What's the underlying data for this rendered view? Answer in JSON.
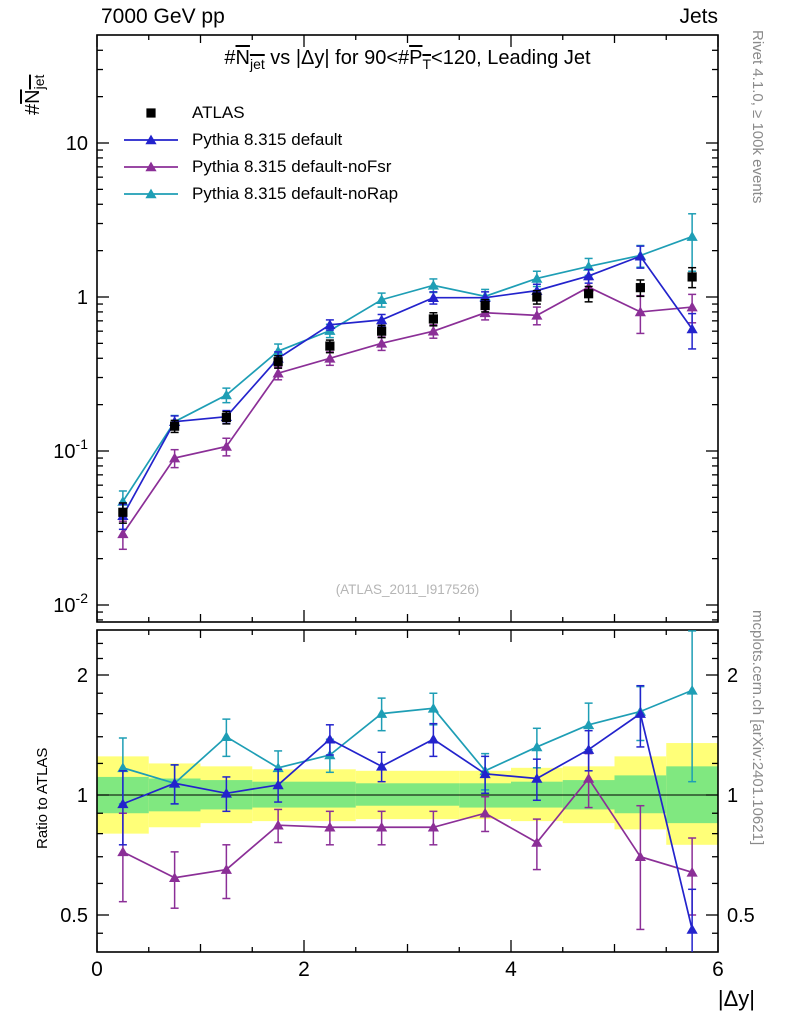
{
  "header": {
    "left": "7000 GeV pp",
    "right": "Jets"
  },
  "side_notes": {
    "right_top": "Rivet 4.1.0, ≥ 100k events",
    "right_bottom": "mcplots.cern.ch [arXiv:2401.10621]"
  },
  "watermark": "(ATLAS_2011_I917526)",
  "title_parts": {
    "p1": "#",
    "p2": "N",
    "p3": "jet",
    "p4": " vs |Δy| for 90<#",
    "p5": "P",
    "p6": "T",
    "p7": "<120, Leading Jet"
  },
  "ylabel_parts": {
    "p1": "#",
    "p2": "N",
    "p3": "jet"
  },
  "ratio_ylabel": "Ratio to ATLAS",
  "xlabel": "|Δy|",
  "chart_data": {
    "type": "line",
    "x": [
      0.25,
      0.75,
      1.25,
      1.75,
      2.25,
      2.75,
      3.25,
      3.75,
      4.25,
      4.75,
      5.25,
      5.75
    ],
    "xlim": [
      0,
      6
    ],
    "yscale": "log",
    "ylim_main": [
      0.007,
      50
    ],
    "ylim_ratio": [
      0.4,
      2.6
    ],
    "series": [
      {
        "name": "ATLAS",
        "marker": "square",
        "color": "#000000",
        "values": [
          0.04,
          0.145,
          0.165,
          0.38,
          0.48,
          0.6,
          0.72,
          0.88,
          1.0,
          1.05,
          1.15,
          1.35
        ],
        "yerr": [
          0.006,
          0.013,
          0.015,
          0.035,
          0.045,
          0.055,
          0.07,
          0.08,
          0.1,
          0.12,
          0.14,
          0.2
        ]
      },
      {
        "name": "Pythia 8.315 default",
        "marker": "triangle",
        "color": "#2323cc",
        "values": [
          0.038,
          0.155,
          0.167,
          0.4,
          0.66,
          0.71,
          0.99,
          0.99,
          1.1,
          1.37,
          1.84,
          0.62
        ],
        "yerr": [
          0.007,
          0.014,
          0.016,
          0.04,
          0.05,
          0.06,
          0.09,
          0.09,
          0.11,
          0.14,
          0.3,
          0.16
        ],
        "ratio": [
          0.95,
          1.07,
          1.01,
          1.06,
          1.38,
          1.18,
          1.38,
          1.13,
          1.1,
          1.3,
          1.6,
          0.46
        ],
        "ratio_err": [
          0.2,
          0.12,
          0.1,
          0.1,
          0.12,
          0.1,
          0.13,
          0.12,
          0.13,
          0.15,
          0.28,
          0.12
        ]
      },
      {
        "name": "Pythia 8.315 default-noFsr",
        "marker": "triangle",
        "color": "#8b2f97",
        "values": [
          0.029,
          0.09,
          0.107,
          0.32,
          0.4,
          0.5,
          0.6,
          0.79,
          0.76,
          1.16,
          0.8,
          0.86
        ],
        "yerr": [
          0.006,
          0.012,
          0.014,
          0.03,
          0.04,
          0.05,
          0.06,
          0.08,
          0.1,
          0.14,
          0.22,
          0.18
        ],
        "ratio": [
          0.72,
          0.62,
          0.65,
          0.84,
          0.83,
          0.83,
          0.83,
          0.9,
          0.76,
          1.1,
          0.7,
          0.64
        ],
        "ratio_err": [
          0.18,
          0.1,
          0.1,
          0.08,
          0.08,
          0.08,
          0.08,
          0.09,
          0.11,
          0.17,
          0.24,
          0.14
        ]
      },
      {
        "name": "Pythia 8.315 default-noRap",
        "marker": "triangle",
        "color": "#1e9eb5",
        "values": [
          0.047,
          0.155,
          0.231,
          0.445,
          0.605,
          0.96,
          1.19,
          1.01,
          1.32,
          1.58,
          1.86,
          2.47
        ],
        "yerr": [
          0.008,
          0.015,
          0.025,
          0.05,
          0.06,
          0.1,
          0.12,
          0.11,
          0.15,
          0.2,
          0.3,
          1.0
        ],
        "ratio": [
          1.17,
          1.07,
          1.4,
          1.17,
          1.26,
          1.6,
          1.65,
          1.15,
          1.32,
          1.5,
          1.62,
          1.83
        ],
        "ratio_err": [
          0.22,
          0.12,
          0.15,
          0.12,
          0.12,
          0.15,
          0.15,
          0.12,
          0.15,
          0.2,
          0.25,
          0.75
        ]
      }
    ],
    "ratio_bands": {
      "bin_edges": [
        0,
        0.5,
        1,
        1.5,
        2,
        2.5,
        3,
        3.5,
        4,
        4.5,
        5,
        5.5,
        6
      ],
      "yellow_lo": [
        0.8,
        0.83,
        0.85,
        0.86,
        0.86,
        0.87,
        0.87,
        0.87,
        0.86,
        0.85,
        0.82,
        0.75
      ],
      "yellow_hi": [
        1.25,
        1.2,
        1.18,
        1.16,
        1.16,
        1.15,
        1.15,
        1.15,
        1.17,
        1.18,
        1.25,
        1.35
      ],
      "green_lo": [
        0.9,
        0.91,
        0.92,
        0.93,
        0.93,
        0.94,
        0.94,
        0.93,
        0.93,
        0.92,
        0.9,
        0.85
      ],
      "green_hi": [
        1.11,
        1.1,
        1.09,
        1.08,
        1.08,
        1.07,
        1.07,
        1.07,
        1.08,
        1.09,
        1.12,
        1.18
      ],
      "yellow_color": "#ffff78",
      "green_color": "#80e880"
    },
    "axes": {
      "x_major": [
        0,
        2,
        4,
        6
      ],
      "x_minor_step": 0.5,
      "y_main_ticks": [
        {
          "v": 10,
          "base": "10",
          "exp": ""
        },
        {
          "v": 1,
          "base": "1",
          "exp": ""
        },
        {
          "v": 0.1,
          "base": "10",
          "exp": "-1"
        },
        {
          "v": 0.01,
          "base": "10",
          "exp": "-2"
        }
      ],
      "y_ratio_ticks": [
        {
          "v": 2,
          "label": "2"
        },
        {
          "v": 1,
          "label": "1"
        },
        {
          "v": 0.5,
          "label": "0.5"
        }
      ],
      "y_ratio_minor": [
        0.45,
        0.6,
        0.7,
        0.8,
        0.9,
        1.2,
        1.4,
        1.6,
        1.8,
        2.2,
        2.4
      ]
    }
  }
}
